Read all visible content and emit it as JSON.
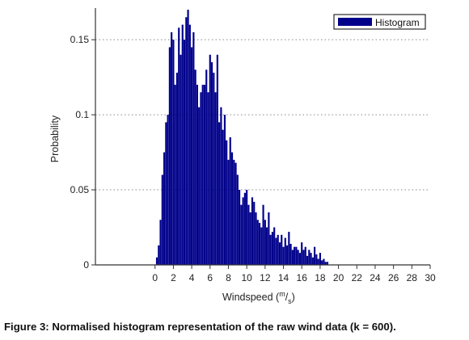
{
  "figure": {
    "caption": "Figure 3: Normalised histogram representation of the raw wind data (k = 600)."
  },
  "colors": {
    "bars": "#00008B",
    "axis": "#333333",
    "grid": "#888888"
  },
  "chart_data": {
    "type": "bar",
    "title": "",
    "xlabel_parts": {
      "prefix": "Windspeed (",
      "numerator": "m",
      "slash": "/",
      "denominator": "s",
      "suffix": ")"
    },
    "ylabel": "Probability",
    "xlim": [
      -6.5,
      30
    ],
    "ylim": [
      0,
      0.17
    ],
    "x_ticks": [
      0,
      2,
      4,
      6,
      8,
      10,
      12,
      14,
      16,
      18,
      20,
      22,
      24,
      26,
      28,
      30
    ],
    "x_tick_labels": [
      "0",
      "2",
      "4",
      "6",
      "8",
      "10",
      "12",
      "14",
      "16",
      "18",
      "20",
      "22",
      "24",
      "26",
      "28",
      "30"
    ],
    "y_ticks": [
      0,
      0.05,
      0.1,
      0.15
    ],
    "y_tick_labels": [
      "0",
      "0.05",
      "0.1",
      "0.15"
    ],
    "grid": "horizontal-dotted",
    "legend": {
      "position": "top-right",
      "entries": [
        "Histogram"
      ]
    },
    "series": [
      {
        "name": "Histogram",
        "x": [
          0.2,
          0.4,
          0.6,
          0.8,
          1.0,
          1.2,
          1.4,
          1.6,
          1.8,
          2.0,
          2.2,
          2.4,
          2.6,
          2.8,
          3.0,
          3.2,
          3.4,
          3.6,
          3.8,
          4.0,
          4.2,
          4.4,
          4.6,
          4.8,
          5.0,
          5.2,
          5.4,
          5.6,
          5.8,
          6.0,
          6.2,
          6.4,
          6.6,
          6.8,
          7.0,
          7.2,
          7.4,
          7.6,
          7.8,
          8.0,
          8.2,
          8.4,
          8.6,
          8.8,
          9.0,
          9.2,
          9.4,
          9.6,
          9.8,
          10.0,
          10.2,
          10.4,
          10.6,
          10.8,
          11.0,
          11.2,
          11.4,
          11.6,
          11.8,
          12.0,
          12.2,
          12.4,
          12.6,
          12.8,
          13.0,
          13.2,
          13.4,
          13.6,
          13.8,
          14.0,
          14.2,
          14.4,
          14.6,
          14.8,
          15.0,
          15.2,
          15.4,
          15.6,
          15.8,
          16.0,
          16.2,
          16.4,
          16.6,
          16.8,
          17.0,
          17.2,
          17.4,
          17.6,
          17.8,
          18.0,
          18.2,
          18.4,
          18.6,
          18.8
        ],
        "values": [
          0.005,
          0.013,
          0.03,
          0.06,
          0.075,
          0.095,
          0.1,
          0.145,
          0.155,
          0.15,
          0.12,
          0.128,
          0.158,
          0.14,
          0.16,
          0.15,
          0.165,
          0.17,
          0.16,
          0.145,
          0.155,
          0.13,
          0.12,
          0.105,
          0.115,
          0.12,
          0.12,
          0.13,
          0.115,
          0.14,
          0.135,
          0.128,
          0.115,
          0.14,
          0.095,
          0.105,
          0.09,
          0.1,
          0.083,
          0.07,
          0.085,
          0.075,
          0.07,
          0.068,
          0.06,
          0.05,
          0.04,
          0.045,
          0.048,
          0.05,
          0.04,
          0.035,
          0.045,
          0.042,
          0.035,
          0.03,
          0.028,
          0.025,
          0.04,
          0.03,
          0.025,
          0.035,
          0.02,
          0.022,
          0.025,
          0.018,
          0.02,
          0.015,
          0.02,
          0.012,
          0.018,
          0.013,
          0.022,
          0.014,
          0.01,
          0.012,
          0.012,
          0.01,
          0.008,
          0.015,
          0.01,
          0.012,
          0.006,
          0.01,
          0.008,
          0.005,
          0.012,
          0.007,
          0.004,
          0.008,
          0.003,
          0.004,
          0.002,
          0.002
        ]
      }
    ]
  }
}
